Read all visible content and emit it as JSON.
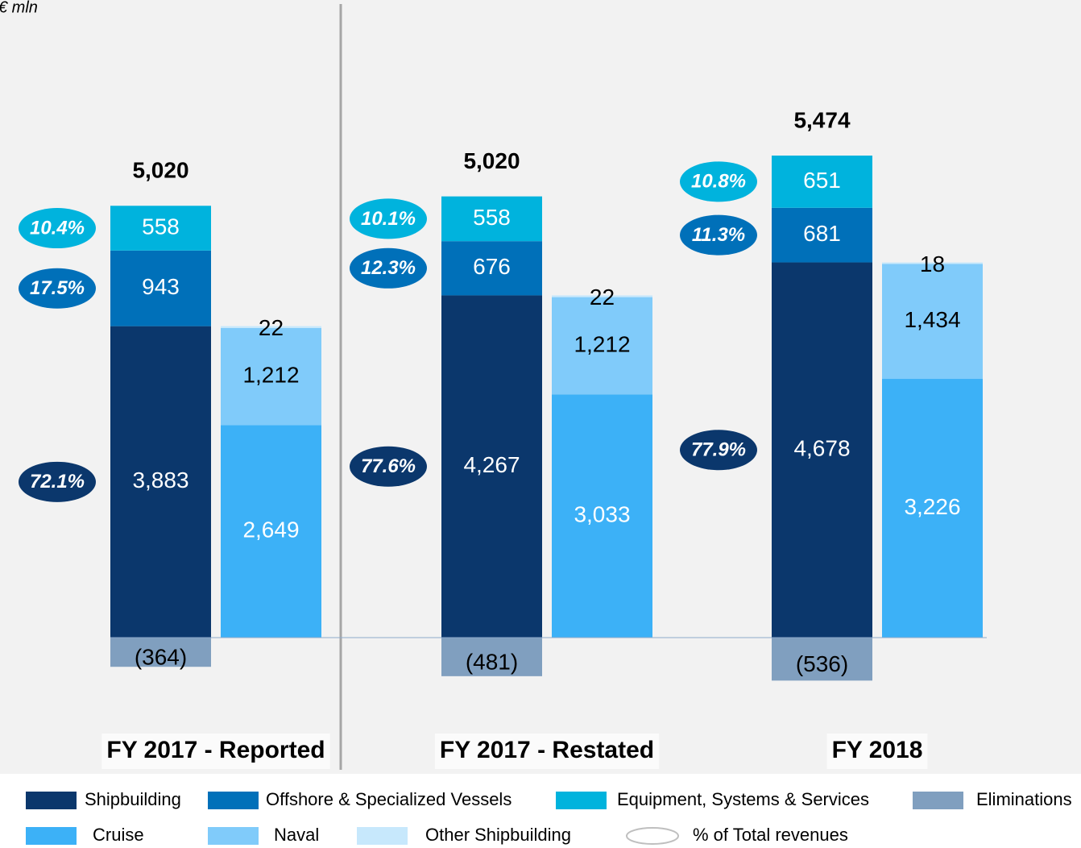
{
  "unit_label": "€ mln",
  "chart_data": {
    "type": "bar",
    "stacked": true,
    "categories": [
      "FY 2017 - Reported",
      "FY 2017 - Restated",
      "FY 2018"
    ],
    "totals": [
      5020,
      5020,
      5474
    ],
    "total_labels": [
      "5,020",
      "5,020",
      "5,474"
    ],
    "share_legend": "% of Total revenues",
    "stacks": [
      {
        "series": [
          {
            "name": "Shipbuilding",
            "color": "#0b376c",
            "label_color": "#ffffff",
            "values": [
              3883,
              4267,
              4678
            ],
            "value_labels": [
              "3,883",
              "4,267",
              "4,678"
            ],
            "share_values": [
              72.1,
              77.6,
              77.9
            ],
            "share_labels": [
              "72.1%",
              "77.6%",
              "77.9%"
            ]
          },
          {
            "name": "Offshore & Specialized Vessels",
            "color": "#0070b9",
            "label_color": "#ffffff",
            "values": [
              943,
              676,
              681
            ],
            "value_labels": [
              "943",
              "676",
              "681"
            ],
            "share_values": [
              17.5,
              12.3,
              11.3
            ],
            "share_labels": [
              "17.5%",
              "12.3%",
              "11.3%"
            ]
          },
          {
            "name": "Equipment, Systems & Services",
            "color": "#00b3dd",
            "label_color": "#ffffff",
            "values": [
              558,
              558,
              651
            ],
            "value_labels": [
              "558",
              "558",
              "651"
            ],
            "share_values": [
              10.4,
              10.1,
              10.8
            ],
            "share_labels": [
              "10.4%",
              "10.1%",
              "10.8%"
            ]
          },
          {
            "name": "Eliminations",
            "color": "#809fbf",
            "label_color": "#000000",
            "values": [
              -364,
              -481,
              -536
            ],
            "value_labels": [
              "(364)",
              "(481)",
              "(536)"
            ]
          }
        ]
      },
      {
        "series": [
          {
            "name": "Cruise",
            "color": "#3cb1f7",
            "label_color": "#ffffff",
            "values": [
              2649,
              3033,
              3226
            ],
            "value_labels": [
              "2,649",
              "3,033",
              "3,226"
            ]
          },
          {
            "name": "Naval",
            "color": "#80cbfa",
            "label_color": "#000000",
            "values": [
              1212,
              1212,
              1434
            ],
            "value_labels": [
              "1,212",
              "1,212",
              "1,434"
            ]
          },
          {
            "name": "Other Shipbuilding",
            "color": "#c7e8fc",
            "label_color": "#000000",
            "values": [
              22,
              22,
              18
            ],
            "value_labels": [
              "22",
              "22",
              "18"
            ]
          }
        ]
      }
    ]
  }
}
